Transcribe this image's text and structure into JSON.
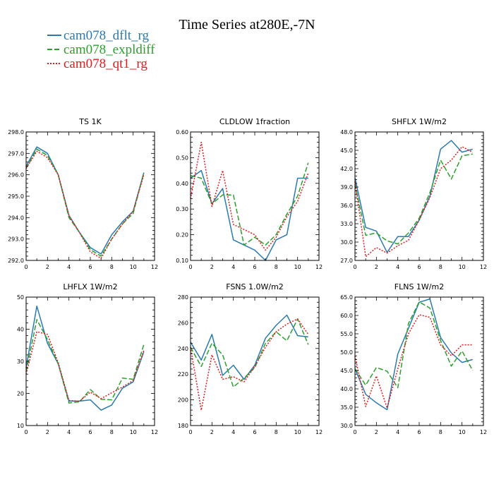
{
  "title": "Time Series at280E,-7N",
  "legend": [
    {
      "label": "cam078_dflt_rg",
      "color": "#2a7ab0",
      "dash": "solid"
    },
    {
      "label": "cam078_expldiff",
      "color": "#2ca02c",
      "dash": "dash"
    },
    {
      "label": "cam078_qt1_rg",
      "color": "#e41a1c",
      "dash": "dot"
    }
  ],
  "chart_data": [
    {
      "type": "line",
      "title": "TS",
      "units": "1K",
      "x": [
        0,
        1,
        2,
        3,
        4,
        5,
        6,
        7,
        8,
        9,
        10,
        11
      ],
      "xlim": [
        0,
        12
      ],
      "xticks": [
        0,
        2,
        4,
        6,
        8,
        10,
        12
      ],
      "ylim": [
        292.0,
        298.0
      ],
      "yticks": [
        "292.0",
        "293.0",
        "294.0",
        "295.0",
        "296.0",
        "297.0",
        "298.0"
      ],
      "series": [
        {
          "name": "cam078_dflt_rg",
          "values": [
            296.4,
            297.3,
            297.0,
            296.0,
            294.1,
            293.3,
            292.6,
            292.3,
            293.2,
            293.8,
            294.3,
            296.1
          ]
        },
        {
          "name": "cam078_expldiff",
          "values": [
            296.3,
            297.2,
            296.9,
            296.0,
            294.0,
            293.3,
            292.5,
            292.2,
            293.0,
            293.7,
            294.2,
            296.1
          ]
        },
        {
          "name": "cam078_qt1_rg",
          "values": [
            296.3,
            297.1,
            296.8,
            296.0,
            294.1,
            293.3,
            292.4,
            292.1,
            293.0,
            293.7,
            294.3,
            296.0
          ]
        }
      ]
    },
    {
      "type": "line",
      "title": "CLDLOW",
      "units": "1fraction",
      "x": [
        0,
        1,
        2,
        3,
        4,
        5,
        6,
        7,
        8,
        9,
        10,
        11
      ],
      "xlim": [
        0,
        12
      ],
      "xticks": [
        0,
        2,
        4,
        6,
        8,
        10,
        12
      ],
      "ylim": [
        0.1,
        0.6
      ],
      "yticks": [
        "0.10",
        "0.20",
        "0.30",
        "0.40",
        "0.50",
        "0.60"
      ],
      "series": [
        {
          "name": "cam078_dflt_rg",
          "values": [
            0.42,
            0.45,
            0.32,
            0.38,
            0.18,
            0.16,
            0.14,
            0.1,
            0.18,
            0.2,
            0.42,
            0.42
          ]
        },
        {
          "name": "cam078_expldiff",
          "values": [
            0.43,
            0.42,
            0.32,
            0.355,
            0.355,
            0.16,
            0.19,
            0.16,
            0.2,
            0.28,
            0.35,
            0.48
          ]
        },
        {
          "name": "cam078_qt1_rg",
          "values": [
            0.34,
            0.56,
            0.31,
            0.45,
            0.24,
            0.22,
            0.2,
            0.14,
            0.19,
            0.27,
            0.33,
            0.44
          ]
        }
      ]
    },
    {
      "type": "line",
      "title": "SHFLX",
      "units": "1W/m2",
      "x": [
        0,
        1,
        2,
        3,
        4,
        5,
        6,
        7,
        8,
        9,
        10,
        11
      ],
      "xlim": [
        0,
        12
      ],
      "xticks": [
        0,
        2,
        4,
        6,
        8,
        10,
        12
      ],
      "ylim": [
        27.0,
        48.0
      ],
      "yticks": [
        "27.0",
        "30.0",
        "33.0",
        "36.0",
        "39.0",
        "42.0",
        "45.0",
        "48.0"
      ],
      "series": [
        {
          "name": "cam078_dflt_rg",
          "values": [
            40.5,
            32.4,
            31.8,
            28.3,
            30.9,
            30.9,
            33.6,
            37.5,
            45.2,
            46.6,
            44.7,
            45.2
          ]
        },
        {
          "name": "cam078_expldiff",
          "values": [
            39.5,
            31.1,
            31.5,
            30.2,
            29.7,
            31.5,
            33.9,
            38.1,
            43.4,
            40.3,
            44.1,
            44.4
          ]
        },
        {
          "name": "cam078_qt1_rg",
          "values": [
            39.9,
            27.6,
            29.1,
            28.2,
            29.4,
            30.3,
            33.6,
            37.3,
            42.0,
            43.4,
            45.6,
            44.7
          ]
        }
      ]
    },
    {
      "type": "line",
      "title": "LHFLX",
      "units": "1W/m2",
      "x": [
        0,
        1,
        2,
        3,
        4,
        5,
        6,
        7,
        8,
        9,
        10,
        11
      ],
      "xlim": [
        0,
        12
      ],
      "xticks": [
        0,
        2,
        4,
        6,
        8,
        10,
        12
      ],
      "ylim": [
        10,
        50
      ],
      "yticks": [
        "10",
        "20",
        "30",
        "40",
        "50"
      ],
      "series": [
        {
          "name": "cam078_dflt_rg",
          "values": [
            28.0,
            47.2,
            35.6,
            29.2,
            17.6,
            17.6,
            18.0,
            14.8,
            16.4,
            21.6,
            23.6,
            33.0
          ]
        },
        {
          "name": "cam078_expldiff",
          "values": [
            26.8,
            43.0,
            36.8,
            29.2,
            17.0,
            17.4,
            21.2,
            18.2,
            18.0,
            24.8,
            24.4,
            35.2
          ]
        },
        {
          "name": "cam078_qt1_rg",
          "values": [
            26.0,
            39.2,
            38.4,
            29.6,
            17.8,
            17.6,
            20.4,
            18.4,
            20.2,
            22.0,
            24.0,
            33.4
          ]
        }
      ]
    },
    {
      "type": "line",
      "title": "FSNS",
      "units": "1.0W/m2",
      "x": [
        0,
        1,
        2,
        3,
        4,
        5,
        6,
        7,
        8,
        9,
        10,
        11
      ],
      "xlim": [
        0,
        12
      ],
      "xticks": [
        0,
        2,
        4,
        6,
        8,
        10,
        12
      ],
      "ylim": [
        180,
        280
      ],
      "yticks": [
        "180",
        "200",
        "220",
        "240",
        "260",
        "280"
      ],
      "series": [
        {
          "name": "cam078_dflt_rg",
          "values": [
            245,
            231,
            251,
            219,
            227,
            216,
            227,
            248,
            258,
            266,
            250,
            249
          ]
        },
        {
          "name": "cam078_expldiff",
          "values": [
            241,
            226,
            244,
            235,
            210,
            217,
            225,
            244,
            253,
            246,
            263,
            243
          ]
        },
        {
          "name": "cam078_qt1_rg",
          "values": [
            241,
            192,
            235,
            216,
            218,
            214,
            226,
            241,
            253,
            259,
            263,
            251
          ]
        }
      ]
    },
    {
      "type": "line",
      "title": "FLNS",
      "units": "1W/m2",
      "x": [
        0,
        1,
        2,
        3,
        4,
        5,
        6,
        7,
        8,
        9,
        10,
        11
      ],
      "xlim": [
        0,
        12
      ],
      "xticks": [
        0,
        2,
        4,
        6,
        8,
        10,
        12
      ],
      "ylim": [
        30.0,
        65.0
      ],
      "yticks": [
        "30.0",
        "35.0",
        "40.0",
        "45.0",
        "50.0",
        "55.0",
        "60.0",
        "65.0"
      ],
      "series": [
        {
          "name": "cam078_dflt_rg",
          "values": [
            45.5,
            38.5,
            36.2,
            34.3,
            49.5,
            56.5,
            63.6,
            64.5,
            54.0,
            49.8,
            47.2,
            48.0
          ]
        },
        {
          "name": "cam078_expldiff",
          "values": [
            45.5,
            41.0,
            45.8,
            44.8,
            40.3,
            57.8,
            63.7,
            62.0,
            53.2,
            46.2,
            50.3,
            45.0
          ]
        },
        {
          "name": "cam078_qt1_rg",
          "values": [
            49.0,
            35.2,
            43.5,
            34.8,
            45.5,
            55.0,
            60.2,
            59.5,
            52.0,
            49.0,
            52.0,
            52.0
          ]
        }
      ]
    }
  ]
}
